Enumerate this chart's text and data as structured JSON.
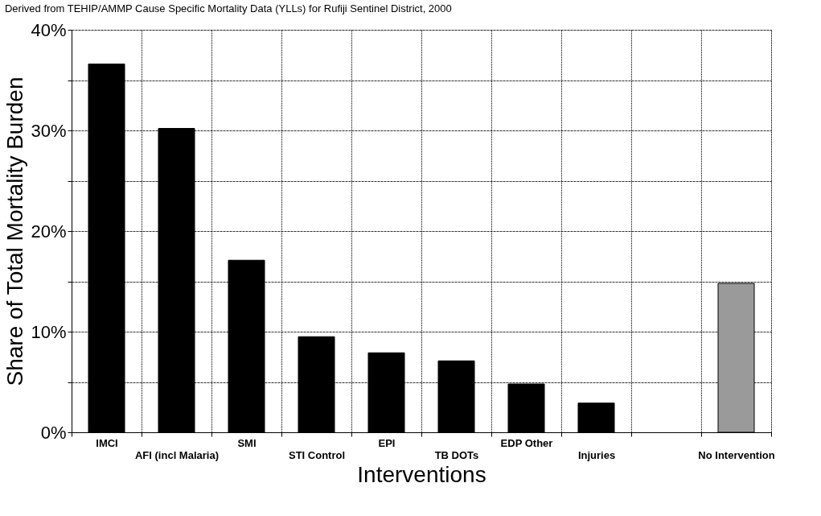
{
  "chart_data": {
    "type": "bar",
    "title": "Derived from TEHIP/AMMP Cause Specific Mortality Data (YLLs) for Rufiji Sentinel District, 2000",
    "xlabel": "Interventions",
    "ylabel": "Share of Total Mortality Burden",
    "categories": [
      "IMCI",
      "AFI (incl Malaria)",
      "SMI",
      "STI Control",
      "EPI",
      "TB DOTs",
      "EDP Other",
      "Injuries",
      null,
      "No Intervention"
    ],
    "values": [
      36.6,
      30.2,
      17.1,
      9.5,
      7.9,
      7.1,
      4.8,
      2.9,
      null,
      14.8
    ],
    "colors": [
      "#000000",
      "#000000",
      "#000000",
      "#000000",
      "#000000",
      "#000000",
      "#000000",
      "#000000",
      "#000000",
      "#9a9a9a"
    ],
    "ylim": [
      0,
      40
    ],
    "yticks": [
      {
        "value": 0,
        "label": "0%"
      },
      {
        "value": 5,
        "label": null
      },
      {
        "value": 10,
        "label": "10%"
      },
      {
        "value": 15,
        "label": null
      },
      {
        "value": 20,
        "label": "20%"
      },
      {
        "value": 25,
        "label": null
      },
      {
        "value": 30,
        "label": "30%"
      },
      {
        "value": 35,
        "label": null
      },
      {
        "value": 40,
        "label": "40%"
      }
    ],
    "grid": true
  }
}
